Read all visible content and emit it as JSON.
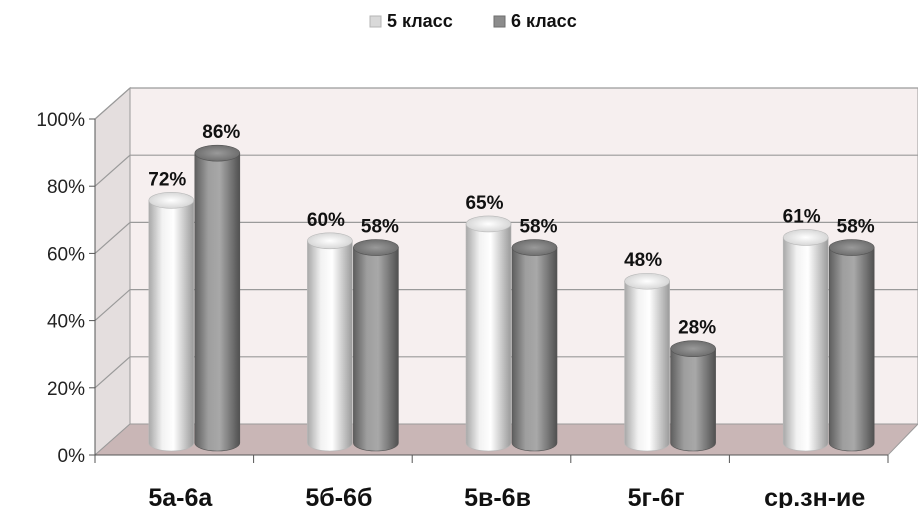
{
  "chart_data": {
    "type": "bar",
    "title": "",
    "xlabel": "",
    "ylabel": "",
    "categories": [
      "5а-6а",
      "5б-6б",
      "5в-6в",
      "5г-6г",
      "ср.зн-ие"
    ],
    "series": [
      {
        "name": "5 класс",
        "values": [
          72,
          60,
          65,
          48,
          61
        ],
        "labels": [
          "72%",
          "60%",
          "65%",
          "48%",
          "61%"
        ],
        "color": "#d9d9d9"
      },
      {
        "name": "6 класс",
        "values": [
          86,
          58,
          58,
          28,
          58
        ],
        "labels": [
          "86%",
          "58%",
          "58%",
          "28%",
          "58%"
        ],
        "color": "#8c8c8c"
      }
    ],
    "ylim": [
      0,
      100
    ],
    "yticks": [
      "0%",
      "20%",
      "40%",
      "60%",
      "80%",
      "100%"
    ],
    "grid": true,
    "legend_position": "top-center",
    "style": "3d-cylinder",
    "colors": {
      "back_wall": "#f5eeee",
      "floor": "#c9b6b6",
      "grid": "#9a9a9a"
    }
  }
}
